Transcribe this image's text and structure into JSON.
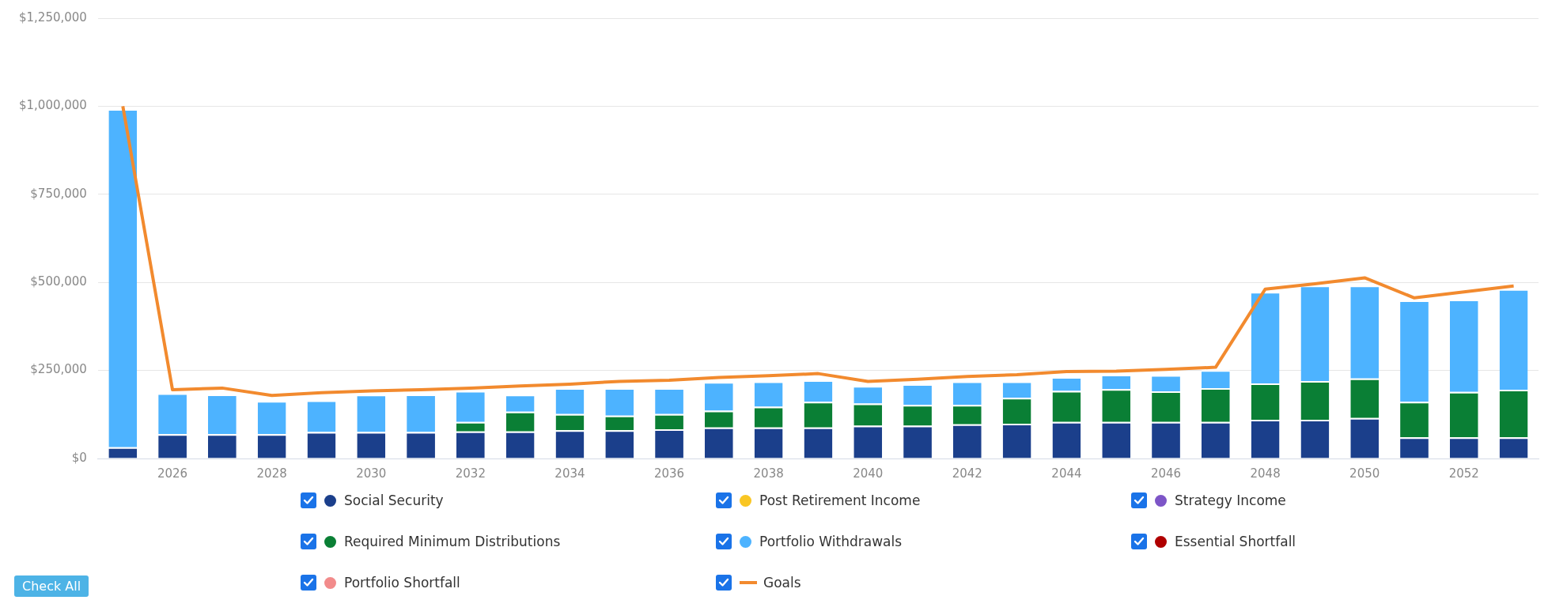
{
  "chart_data": {
    "type": "bar",
    "stacked": true,
    "grid": "y",
    "legend": "bottom",
    "categories": [
      null,
      "2026",
      null,
      "2028",
      null,
      "2030",
      null,
      "2032",
      null,
      "2034",
      null,
      "2036",
      null,
      "2038",
      null,
      "2040",
      null,
      "2042",
      null,
      "2044",
      null,
      "2046",
      null,
      "2048",
      null,
      "2050",
      null,
      "2052",
      null
    ],
    "ylim": [
      0,
      1250000
    ],
    "yticks": [
      {
        "value": 0,
        "label": "$0"
      },
      {
        "value": 250000,
        "label": "$250,000"
      },
      {
        "value": 500000,
        "label": "$500,000"
      },
      {
        "value": 750000,
        "label": "$750,000"
      },
      {
        "value": 1000000,
        "label": "$1,000,000"
      },
      {
        "value": 1250000,
        "label": "$1,250,000"
      }
    ],
    "series": [
      {
        "name": "Social Security",
        "color": "#1b3f8b",
        "values": [
          32000,
          69000,
          69000,
          69000,
          75000,
          75000,
          75000,
          77000,
          77000,
          80000,
          80000,
          83000,
          88000,
          88000,
          88000,
          93000,
          93000,
          97000,
          99000,
          104000,
          104000,
          104000,
          104000,
          110000,
          110000,
          115000,
          60000,
          60000,
          60000
        ]
      },
      {
        "name": "Post Retirement Income",
        "color": "#f9c623",
        "values": [
          0,
          0,
          0,
          0,
          0,
          0,
          0,
          0,
          0,
          0,
          0,
          0,
          0,
          0,
          0,
          0,
          0,
          0,
          0,
          0,
          0,
          0,
          0,
          0,
          0,
          0,
          0,
          0,
          0
        ]
      },
      {
        "name": "Strategy Income",
        "color": "#7d55c7",
        "values": [
          0,
          0,
          0,
          0,
          0,
          0,
          0,
          0,
          0,
          0,
          0,
          0,
          0,
          0,
          0,
          0,
          0,
          0,
          0,
          0,
          0,
          0,
          0,
          0,
          0,
          0,
          0,
          0,
          0
        ]
      },
      {
        "name": "Required Minimum Distributions",
        "color": "#0a7f35",
        "values": [
          0,
          0,
          0,
          0,
          0,
          0,
          0,
          27000,
          56000,
          46000,
          42000,
          43000,
          48000,
          59000,
          73000,
          63000,
          59000,
          55000,
          73000,
          88000,
          93000,
          87000,
          96000,
          103000,
          110000,
          112000,
          101000,
          129000,
          135000
        ]
      },
      {
        "name": "Portfolio Withdrawals",
        "color": "#4db3ff",
        "values": [
          960000,
          116000,
          113000,
          94000,
          90000,
          106000,
          107000,
          88000,
          48000,
          74000,
          78000,
          74000,
          81000,
          72000,
          61000,
          50000,
          59000,
          67000,
          47000,
          39000,
          41000,
          46000,
          51000,
          260000,
          271000,
          264000,
          288000,
          262000,
          286000
        ]
      },
      {
        "name": "Essential Shortfall",
        "color": "#b00000",
        "values": [
          0,
          0,
          0,
          0,
          0,
          0,
          0,
          0,
          0,
          0,
          0,
          0,
          0,
          0,
          0,
          0,
          0,
          0,
          0,
          0,
          0,
          0,
          0,
          0,
          0,
          0,
          0,
          0,
          0
        ]
      },
      {
        "name": "Portfolio Shortfall",
        "color": "#f28b8b",
        "values": [
          0,
          0,
          0,
          0,
          0,
          0,
          0,
          0,
          0,
          0,
          0,
          0,
          0,
          0,
          0,
          0,
          0,
          0,
          0,
          0,
          0,
          0,
          0,
          0,
          0,
          0,
          0,
          0,
          0
        ]
      },
      {
        "name": "Goals",
        "type": "line",
        "color": "#f28a2e",
        "values": [
          1000000,
          195000,
          200000,
          179000,
          187000,
          192000,
          195000,
          200000,
          206000,
          211000,
          219000,
          222000,
          230000,
          235000,
          241000,
          219000,
          225000,
          233000,
          238000,
          247000,
          248000,
          253000,
          259000,
          481000,
          496000,
          513000,
          456000,
          473000,
          490000
        ]
      }
    ],
    "annotations": [
      "Check All"
    ]
  }
}
